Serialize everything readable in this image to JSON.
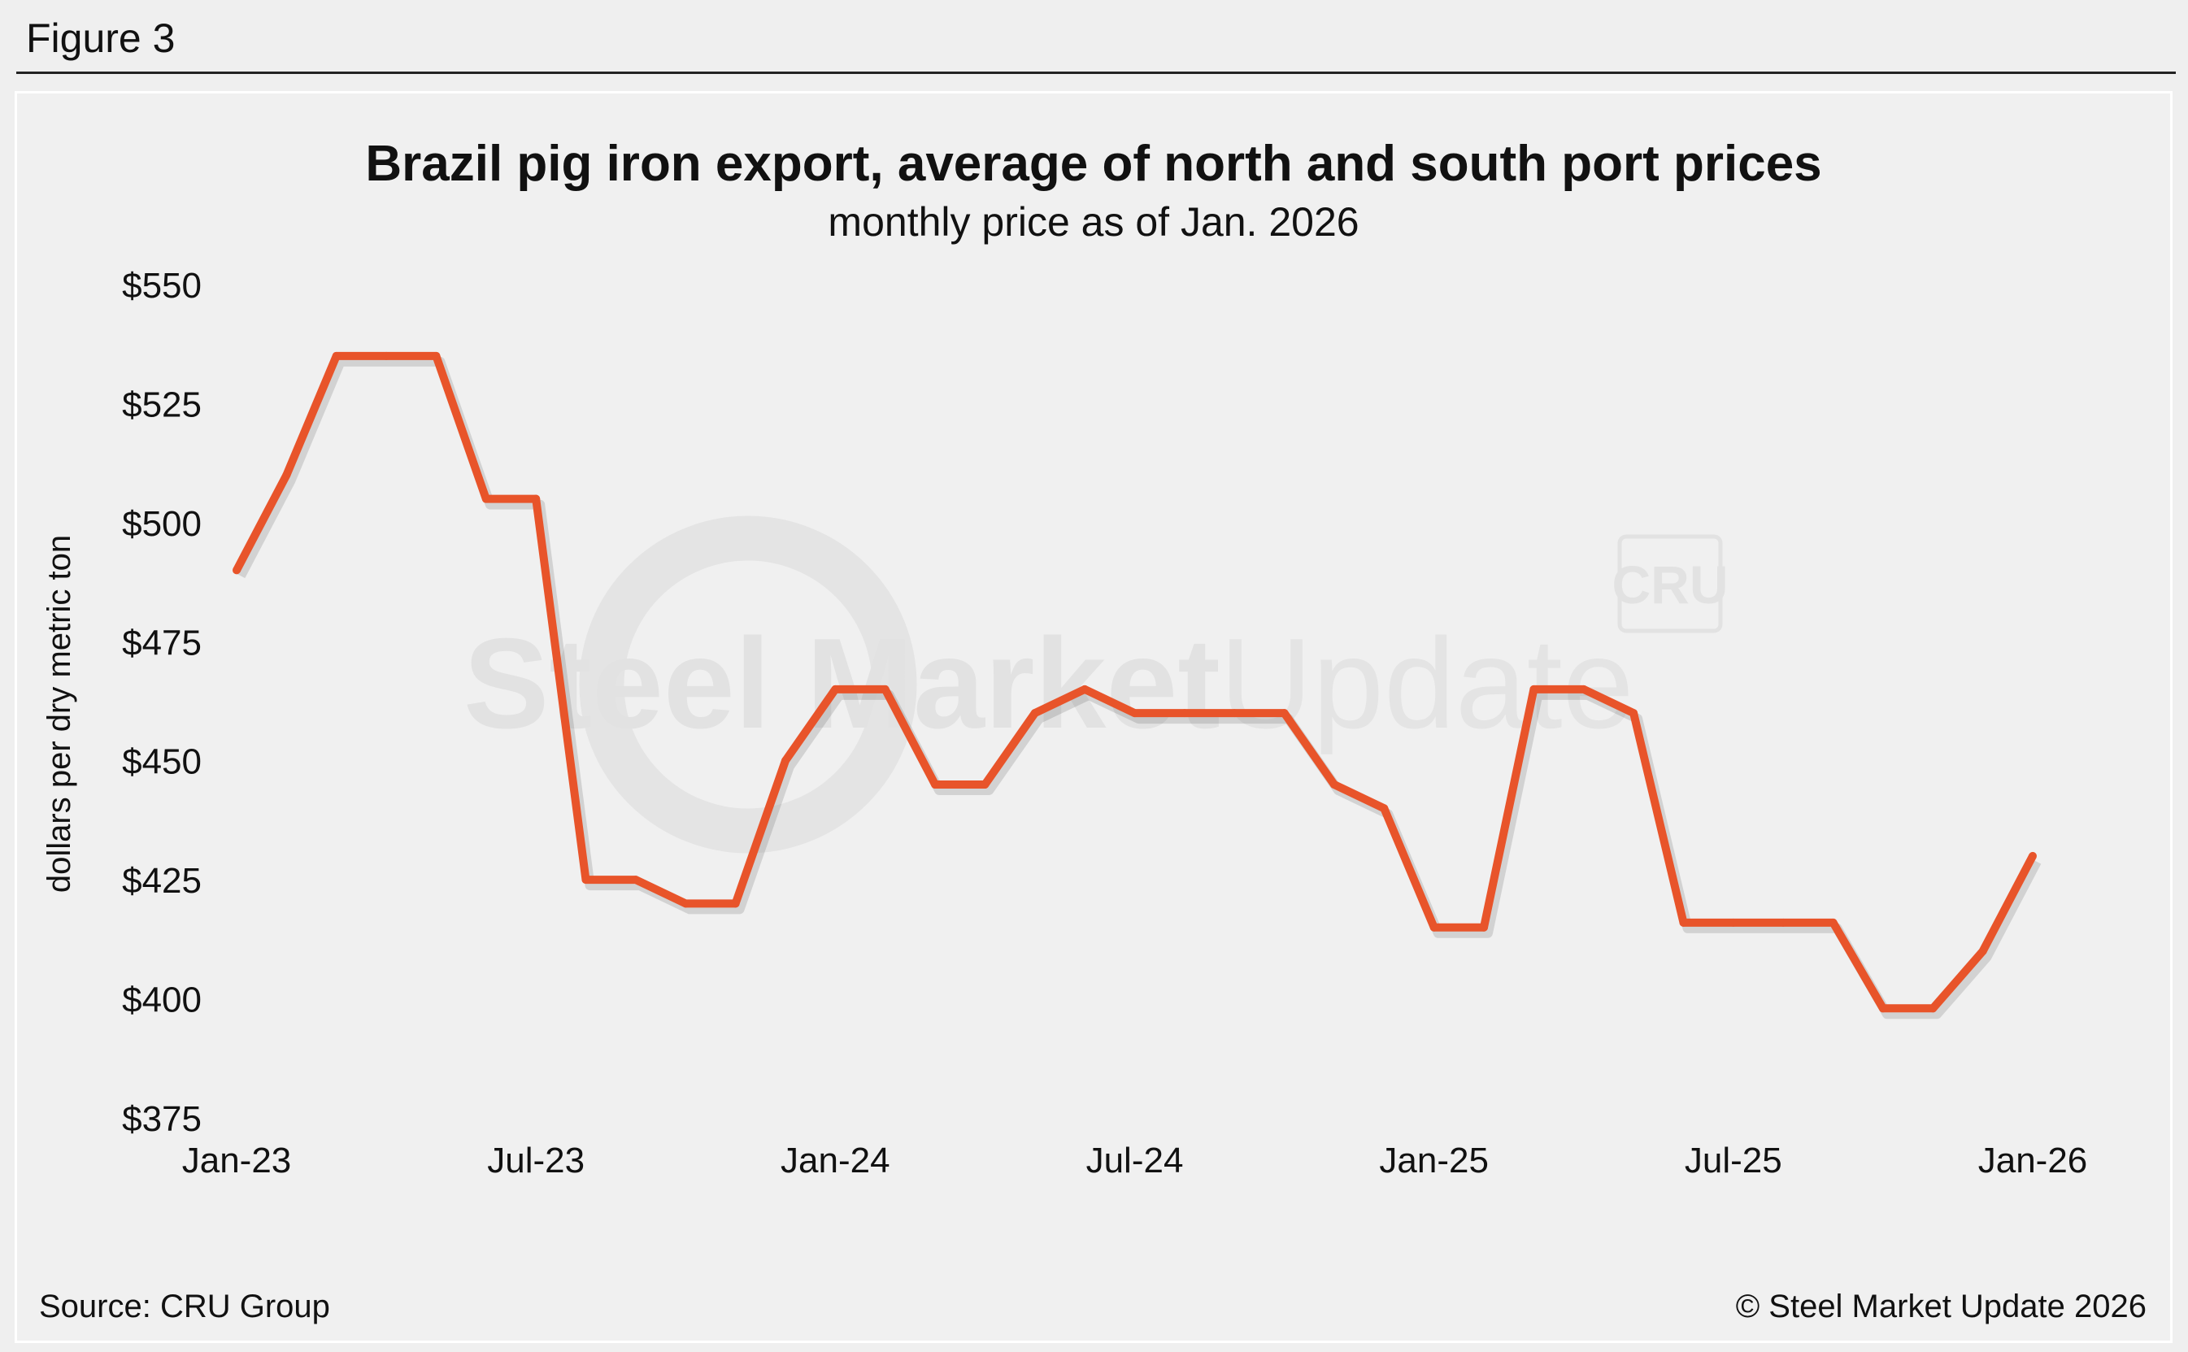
{
  "figure_label": "Figure 3",
  "source": "Source: CRU Group",
  "copyright": "© Steel Market Update 2026",
  "watermark": {
    "main": "Steel Market",
    "light": "Update",
    "badge": "CRU"
  },
  "colors": {
    "line": "#e8542a",
    "background": "#efefef"
  },
  "chart_data": {
    "type": "line",
    "title": "Brazil pig iron export, average of north and south port prices",
    "subtitle": "monthly price as of Jan. 2026",
    "ylabel": "dollars per dry metric ton",
    "xlabel": "",
    "ylim": [
      375,
      550
    ],
    "y_ticks": [
      550,
      525,
      500,
      475,
      450,
      425,
      400,
      375
    ],
    "y_tick_labels": [
      "$550",
      "$525",
      "$500",
      "$475",
      "$450",
      "$425",
      "$400",
      "$375"
    ],
    "x_tick_labels": [
      "Jan-23",
      "Jul-23",
      "Jan-24",
      "Jul-24",
      "Jan-25",
      "Jul-25",
      "Jan-26"
    ],
    "x": [
      "Jan-23",
      "Feb-23",
      "Mar-23",
      "Apr-23",
      "May-23",
      "Jun-23",
      "Jul-23",
      "Aug-23",
      "Sep-23",
      "Oct-23",
      "Nov-23",
      "Dec-23",
      "Jan-24",
      "Feb-24",
      "Mar-24",
      "Apr-24",
      "May-24",
      "Jun-24",
      "Jul-24",
      "Aug-24",
      "Sep-24",
      "Oct-24",
      "Nov-24",
      "Dec-24",
      "Jan-25",
      "Feb-25",
      "Mar-25",
      "Apr-25",
      "May-25",
      "Jun-25",
      "Jul-25",
      "Aug-25",
      "Sep-25",
      "Oct-25",
      "Nov-25",
      "Dec-25",
      "Jan-26"
    ],
    "series": [
      {
        "values": [
          490,
          510,
          535,
          535,
          535,
          505,
          505,
          425,
          425,
          420,
          420,
          450,
          465,
          465,
          445,
          445,
          460,
          465,
          460,
          460,
          460,
          460,
          445,
          440,
          415,
          415,
          465,
          465,
          460,
          416,
          416,
          416,
          416,
          398,
          398,
          410,
          430
        ]
      }
    ],
    "grid": false,
    "legend": "none"
  }
}
